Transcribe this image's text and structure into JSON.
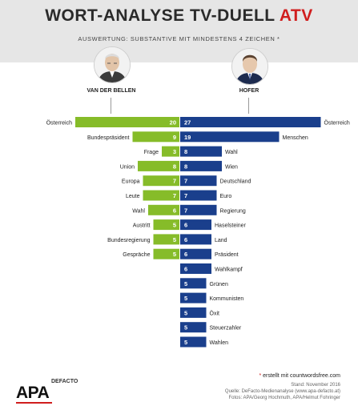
{
  "header": {
    "title_main": "WORT-ANALYSE TV-DUELL ",
    "title_accent": "ATV",
    "subtitle": "AUSWERTUNG: SUBSTANTIVE MIT MINDESTENS 4 ZEICHEN",
    "subtitle_star": "*"
  },
  "candidates": {
    "left": "VAN DER BELLEN",
    "right": "HOFER"
  },
  "colors": {
    "left": "#86bc29",
    "right": "#1a3f8c",
    "accent": "#d01e1e"
  },
  "chart_data": {
    "type": "bar",
    "left_series": {
      "name": "VAN DER BELLEN",
      "words": [
        "Österreich",
        "Bundespräsident",
        "Frage",
        "Union",
        "Europa",
        "Leute",
        "Wahl",
        "Austritt",
        "Bundesregierung",
        "Gespräche"
      ],
      "values": [
        20,
        9,
        3,
        8,
        7,
        7,
        6,
        5,
        5,
        5
      ]
    },
    "right_series": {
      "name": "HOFER",
      "words": [
        "Österreich",
        "Menschen",
        "Wahl",
        "Wien",
        "Deutschland",
        "Euro",
        "Regierung",
        "Haselsteiner",
        "Land",
        "Präsident",
        "Wahlkampf",
        "Grünen",
        "Kommunisten",
        "Öxit",
        "Steuerzahler",
        "Wahlen"
      ],
      "values": [
        27,
        19,
        8,
        8,
        7,
        7,
        7,
        6,
        6,
        6,
        6,
        5,
        5,
        5,
        5,
        5
      ]
    }
  },
  "footer": {
    "note_star": "*",
    "note": " erstellt mit countwordsfree.com",
    "stand": "Stand: November 2016",
    "source": "Quelle: DeFacto-Medienanalyse (www.apa-defacto.at)",
    "photos": "Fotos: APA/Georg Hochmuth, APA/Helmut Fohringer",
    "logo_main": "APA",
    "logo_sub": "DEFACTO"
  }
}
